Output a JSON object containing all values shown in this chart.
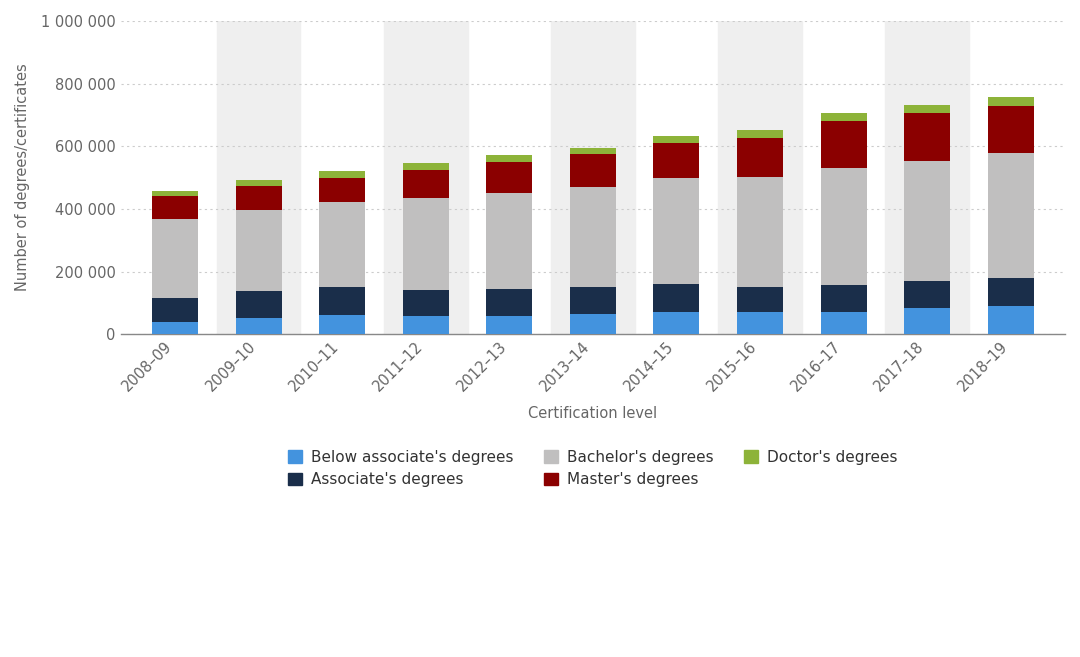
{
  "categories": [
    "2008–09",
    "2009–10",
    "2010–11",
    "2011–12",
    "2012–13",
    "2013–14",
    "2014–15",
    "2015–16",
    "2016–17",
    "2017–18",
    "2018–19"
  ],
  "below_associate": [
    38000,
    53000,
    62000,
    57000,
    58000,
    63000,
    70000,
    72000,
    72000,
    83000,
    90000
  ],
  "associate": [
    78000,
    85000,
    88000,
    85000,
    85000,
    88000,
    90000,
    78000,
    85000,
    88000,
    90000
  ],
  "bachelor": [
    253000,
    258000,
    272000,
    292000,
    308000,
    318000,
    338000,
    352000,
    373000,
    382000,
    398000
  ],
  "master": [
    72000,
    78000,
    78000,
    90000,
    98000,
    105000,
    112000,
    125000,
    150000,
    152000,
    152000
  ],
  "doctor": [
    17000,
    19000,
    20000,
    21000,
    22000,
    22000,
    24000,
    25000,
    27000,
    28000,
    28000
  ],
  "colors": {
    "below_associate": "#4393de",
    "associate": "#1a2e4a",
    "bachelor": "#c0bfbf",
    "master": "#8b0000",
    "doctor": "#8db339"
  },
  "ylabel": "Number of degrees/certificates",
  "xlabel": "Certification level",
  "ylim": [
    0,
    1000000
  ],
  "yticks": [
    0,
    200000,
    400000,
    600000,
    800000,
    1000000
  ],
  "ytick_labels": [
    "0",
    "200 000",
    "400 000",
    "600 000",
    "800 000",
    "1 000 000"
  ],
  "background_color": "#ffffff",
  "plot_bg_shaded": "#efefef",
  "grid_color": "#cccccc",
  "legend_labels": [
    "Below associate's degrees",
    "Associate's degrees",
    "Bachelor's degrees",
    "Master's degrees",
    "Doctor's degrees"
  ]
}
